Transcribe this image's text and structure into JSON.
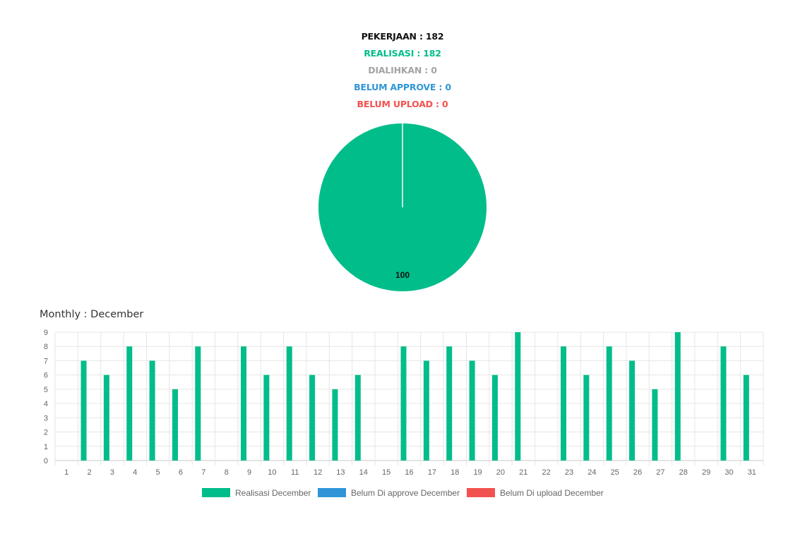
{
  "summary": {
    "pekerjaan": "PEKERJAAN : 182",
    "realisasi": "REALISASI : 182",
    "dialihkan": "DIALIHKAN : 0",
    "belum_approve": "BELUM APPROVE : 0",
    "belum_upload": "BELUM UPLOAD : 0"
  },
  "monthly_title": "Monthly : December",
  "colors": {
    "realisasi": "#00bd8a",
    "belum_approve": "#2f95d6",
    "belum_upload": "#f2524f",
    "dialihkan": "#a4a4a4"
  },
  "chart_data": [
    {
      "type": "pie",
      "slices": [
        {
          "label": "Realisasi",
          "value": 100,
          "color": "#00bd8a"
        },
        {
          "label": "Belum approve",
          "value": 0,
          "color": "#2f95d6"
        },
        {
          "label": "Belum upload",
          "value": 0,
          "color": "#f2524f"
        }
      ],
      "data_labels": [
        "100"
      ]
    },
    {
      "type": "bar",
      "categories": [
        "1",
        "2",
        "3",
        "4",
        "5",
        "6",
        "7",
        "8",
        "9",
        "10",
        "11",
        "12",
        "13",
        "14",
        "15",
        "16",
        "17",
        "18",
        "19",
        "20",
        "21",
        "22",
        "23",
        "24",
        "25",
        "26",
        "27",
        "28",
        "29",
        "30",
        "31"
      ],
      "series": [
        {
          "name": "Realisasi December",
          "color": "#00bd8a",
          "values": [
            0,
            7,
            6,
            8,
            7,
            5,
            8,
            0,
            8,
            6,
            8,
            6,
            5,
            6,
            0,
            8,
            7,
            8,
            7,
            6,
            9,
            0,
            8,
            6,
            8,
            7,
            5,
            9,
            0,
            8,
            6
          ]
        },
        {
          "name": "Belum Di approve December",
          "color": "#2f95d6",
          "values": [
            0,
            0,
            0,
            0,
            0,
            0,
            0,
            0,
            0,
            0,
            0,
            0,
            0,
            0,
            0,
            0,
            0,
            0,
            0,
            0,
            0,
            0,
            0,
            0,
            0,
            0,
            0,
            0,
            0,
            0,
            0
          ]
        },
        {
          "name": "Belum Di upload December",
          "color": "#f2524f",
          "values": [
            0,
            0,
            0,
            0,
            0,
            0,
            0,
            0,
            0,
            0,
            0,
            0,
            0,
            0,
            0,
            0,
            0,
            0,
            0,
            0,
            0,
            0,
            0,
            0,
            0,
            0,
            0,
            0,
            0,
            0,
            0
          ]
        }
      ],
      "yticks": [
        "0",
        "1",
        "2",
        "3",
        "4",
        "5",
        "6",
        "7",
        "8",
        "9"
      ],
      "ylim": [
        0,
        9
      ],
      "grid": true,
      "legend_position": "bottom"
    }
  ]
}
